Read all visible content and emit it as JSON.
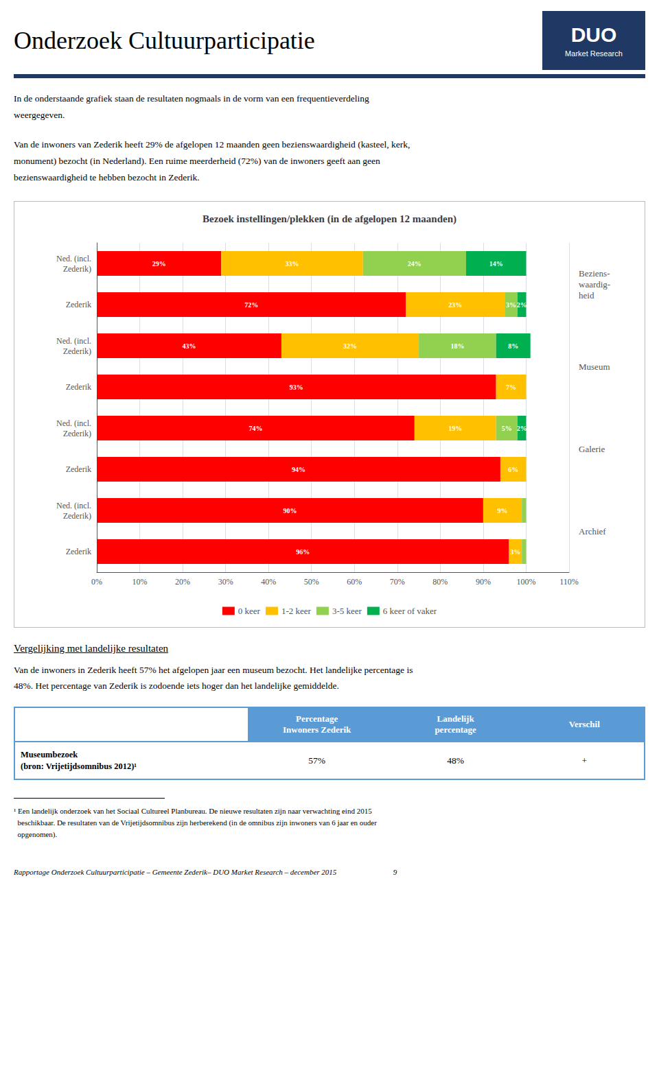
{
  "page": {
    "title": "Onderzoek Cultuurparticipatie",
    "logo": "DUO",
    "logo_subtitle": "Market Research",
    "logo_color": "#1F3864",
    "header_line_color": "#1F3864",
    "intro": [
      "In de onderstaande grafiek staan de resultaten nogmaals in de vorm van een frequentieverdeling\nweergegeven.",
      "Van de inwoners van Zederik heeft 29% de afgelopen 12 maanden geen bezienswaardigheid (kasteel, kerk,\nmonument) bezocht (in Nederland). Een ruime meerderheid (72%) van de inwoners geeft aan geen\nbezienswaardigheid te hebben bezocht in Zederik."
    ],
    "comparison_title": "Vergelijking met landelijke resultaten",
    "comparison_text": "Van de inwoners in Zederik heeft 57% het afgelopen jaar een museum bezocht. Het landelijke percentage is\n48%. Het percentage van Zederik is zodoende iets hoger dan het landelijke gemiddelde.",
    "table": {
      "header": [
        "Percentage\nInwoners Zederik",
        "Landelijk\npercentage",
        "Verschil"
      ],
      "header_color": "#5B9BD5",
      "row_label": "Museumbezoek",
      "row_label2": "(bron: Vrijetijdsomnibus 2012)¹",
      "values": [
        "57%",
        "48%",
        "+"
      ]
    },
    "footnote": "¹ Een landelijk onderzoek van het Sociaal Cultureel Planbureau. De nieuwe resultaten zijn naar verwachting eind 2015\n  beschikbaar. De resultaten van de Vrijetijdsomnibus zijn herberekend (in de omnibus zijn inwoners van 6 jaar en ouder\n  opgenomen).",
    "footer": "Rapportage Onderzoek Cultuurparticipatie – Gemeente Zederik– DUO Market Research – december 2015                              9"
  },
  "chart_data": {
    "type": "bar",
    "orientation": "horizontal",
    "stacked": true,
    "title": "Bezoek instellingen/plekken (in de afgelopen 12 maanden)",
    "categories": [
      "Ned. (incl.\nZederik)",
      "Zederik",
      "Ned. (incl.\nZederik)",
      "Zederik",
      "Ned. (incl.\nZederik)",
      "Zederik",
      "Ned. (incl.\nZederik)",
      "Zederik"
    ],
    "groups": [
      "Beziens-\nwaardig-\nheid",
      "Museum",
      "Galerie",
      "Archief"
    ],
    "series": [
      {
        "name": "0 keer",
        "color": "#FF0000",
        "values": [
          29,
          72,
          43,
          93,
          74,
          94,
          90,
          96
        ],
        "value_labels": [
          "29%",
          "72%",
          "43%",
          "93%",
          "74%",
          "94%",
          "90%",
          "96%"
        ]
      },
      {
        "name": "1-2 keer",
        "color": "#FFC000",
        "values": [
          33,
          23,
          32,
          7,
          19,
          6,
          9,
          3
        ],
        "value_labels": [
          "33%",
          "23%",
          "32%",
          "7%",
          "19%",
          "6%",
          "9%",
          "3%"
        ]
      },
      {
        "name": "3-5 keer",
        "color": "#92D050",
        "values": [
          24,
          3,
          18,
          0,
          5,
          0,
          1,
          1
        ],
        "value_labels": [
          "24%",
          "3%",
          "18%",
          null,
          "5%",
          null,
          null,
          null
        ]
      },
      {
        "name": "6 keer of vaker",
        "color": "#00B050",
        "values": [
          14,
          2,
          8,
          0,
          2,
          0,
          0,
          0
        ],
        "value_labels": [
          "14%",
          "2%",
          "8%",
          null,
          "2%",
          null,
          null,
          null
        ]
      }
    ],
    "xlim": [
      0,
      110
    ],
    "xticks": [
      {
        "value": 0,
        "label": "0%"
      },
      {
        "value": 10,
        "label": "10%"
      },
      {
        "value": 20,
        "label": "20%"
      },
      {
        "value": 30,
        "label": "30%"
      },
      {
        "value": 40,
        "label": "40%"
      },
      {
        "value": 50,
        "label": "50%"
      },
      {
        "value": 60,
        "label": "60%"
      },
      {
        "value": 70,
        "label": "70%"
      },
      {
        "value": 80,
        "label": "80%"
      },
      {
        "value": 90,
        "label": "90%"
      },
      {
        "value": 100,
        "label": "100%"
      },
      {
        "value": 110,
        "label": "110%"
      }
    ],
    "grid": true,
    "legend": "bottom",
    "data_labels": true
  }
}
